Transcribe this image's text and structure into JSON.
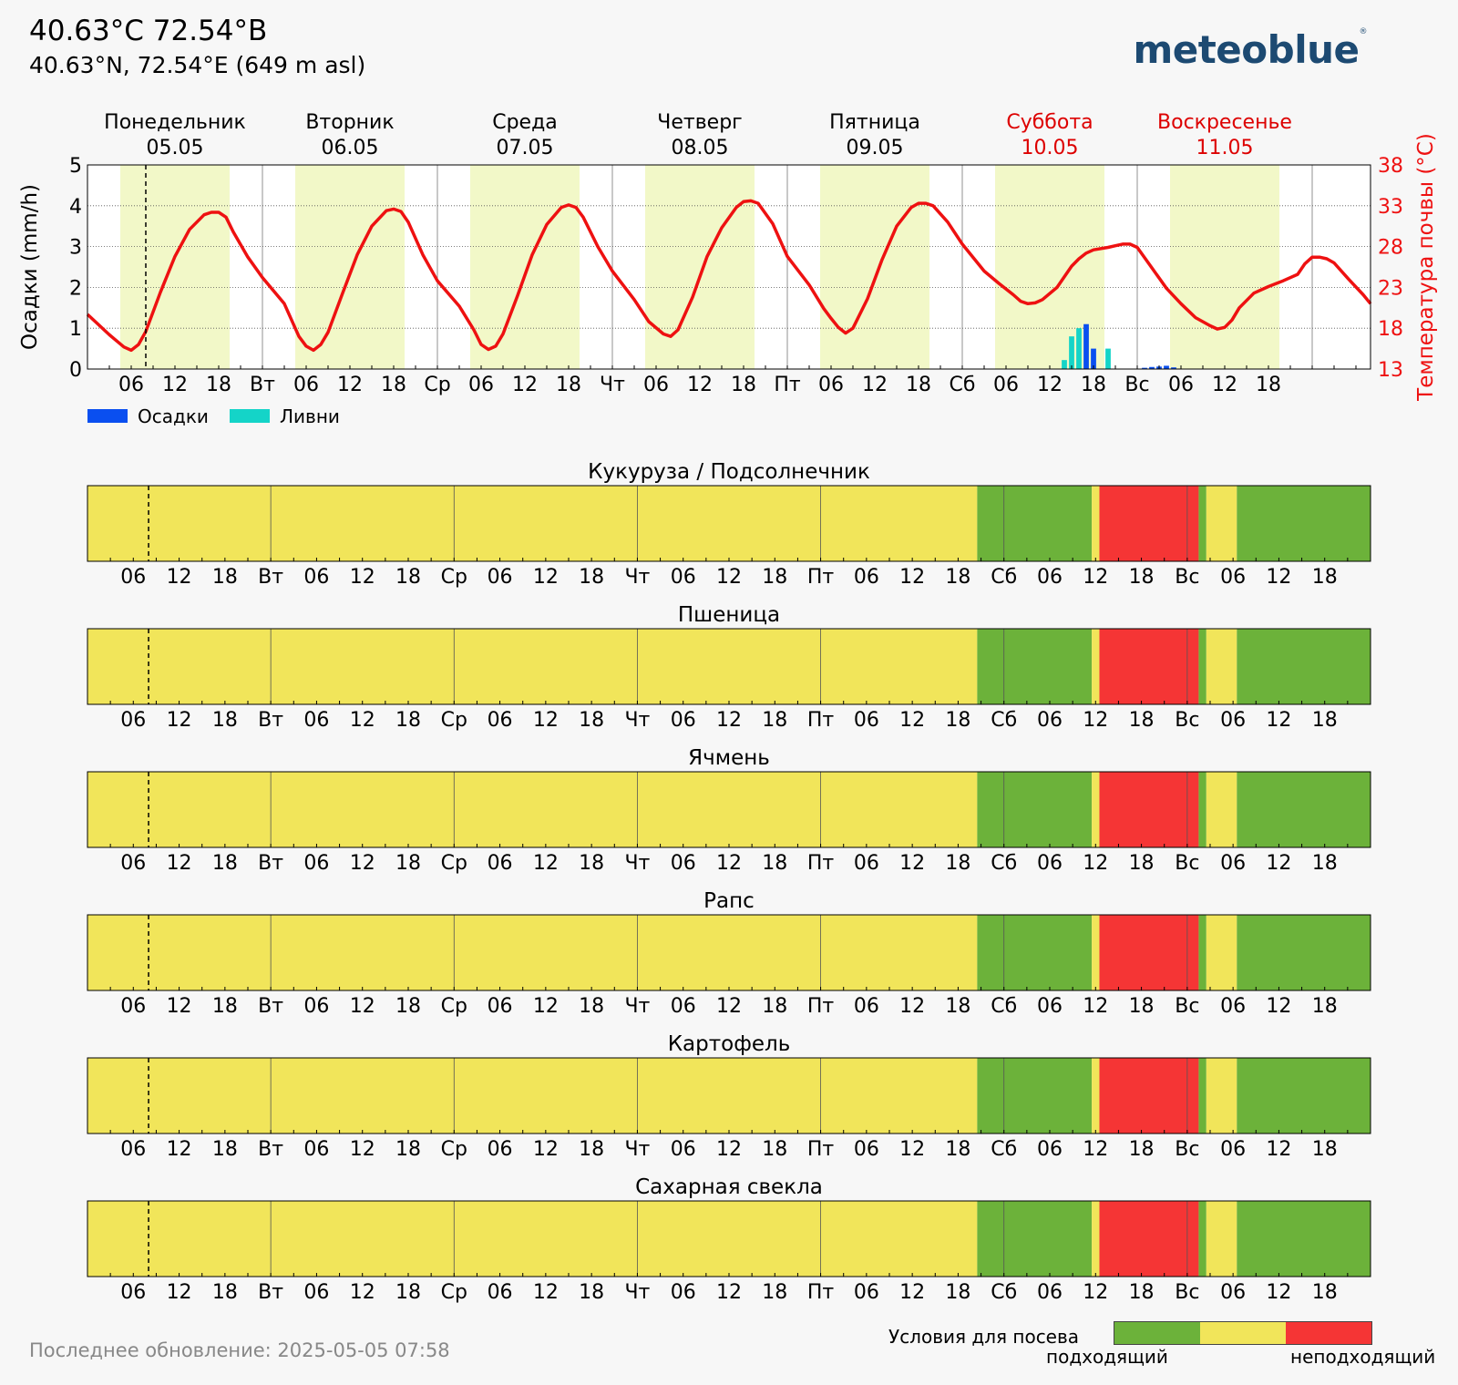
{
  "header": {
    "title": "40.63°C 72.54°В",
    "subtitle": "40.63°N, 72.54°E (649 m asl)",
    "logo": "meteoblue"
  },
  "footer": {
    "last_update": "Последнее обновление: 2025-05-05 07:58"
  },
  "legend": {
    "precip_label": "Осадки",
    "showers_label": "Ливни",
    "sowing_title": "Условия для посева",
    "suitable": "подходящий",
    "unsuitable": "неподходящий"
  },
  "colors": {
    "precip": "#0a4ff0",
    "showers": "#14d4c8",
    "temp": "#ee1111",
    "daylight": "#f2f8c8",
    "good": "#6cb23a",
    "medium": "#f1e55a",
    "bad": "#f53535",
    "weekend": "#dd0000"
  },
  "chart_data": {
    "type": "line",
    "days": [
      {
        "name": "Понедельник",
        "date": "05.05",
        "weekend": false
      },
      {
        "name": "Вторник",
        "date": "06.05",
        "weekend": false
      },
      {
        "name": "Среда",
        "date": "07.05",
        "weekend": false
      },
      {
        "name": "Четверг",
        "date": "08.05",
        "weekend": false
      },
      {
        "name": "Пятница",
        "date": "09.05",
        "weekend": false
      },
      {
        "name": "Суббота",
        "date": "10.05",
        "weekend": true
      },
      {
        "name": "Воскресенье",
        "date": "11.05",
        "weekend": true
      }
    ],
    "day_abbr": [
      "",
      "Вт",
      "Ср",
      "Чт",
      "Пт",
      "Сб",
      "Вс"
    ],
    "hour_labels": [
      "06",
      "12",
      "18"
    ],
    "ylabel_left": "Осадки (mm/h)",
    "ylabel_right": "Температура почвы (°C)",
    "ylim_left": [
      0,
      5
    ],
    "ylim_right": [
      13,
      38
    ],
    "yticks_left": [
      "0",
      "1",
      "2",
      "3",
      "4",
      "5"
    ],
    "yticks_right": [
      "13",
      "18",
      "23",
      "28",
      "33",
      "38"
    ],
    "now_hour": 8,
    "daylight_hours": [
      4.5,
      19.5
    ],
    "soil_temperature": [
      [
        0,
        19.7
      ],
      [
        3,
        17.2
      ],
      [
        5,
        15.7
      ],
      [
        6,
        15.3
      ],
      [
        7,
        16.0
      ],
      [
        8,
        17.6
      ],
      [
        10,
        22.4
      ],
      [
        12,
        26.8
      ],
      [
        14,
        30.1
      ],
      [
        16,
        31.9
      ],
      [
        17,
        32.2
      ],
      [
        18,
        32.2
      ],
      [
        19,
        31.6
      ],
      [
        20,
        29.8
      ],
      [
        22,
        26.7
      ],
      [
        24,
        24.2
      ],
      [
        27,
        21.0
      ],
      [
        29,
        17.0
      ],
      [
        30,
        15.8
      ],
      [
        31,
        15.3
      ],
      [
        32,
        16.0
      ],
      [
        33,
        17.5
      ],
      [
        35,
        22.3
      ],
      [
        37,
        27.0
      ],
      [
        39,
        30.5
      ],
      [
        41,
        32.4
      ],
      [
        42,
        32.6
      ],
      [
        43,
        32.3
      ],
      [
        44,
        31.0
      ],
      [
        46,
        27.0
      ],
      [
        48,
        23.8
      ],
      [
        51,
        20.7
      ],
      [
        53,
        17.8
      ],
      [
        54,
        16.0
      ],
      [
        55,
        15.4
      ],
      [
        56,
        15.8
      ],
      [
        57,
        17.3
      ],
      [
        59,
        22.0
      ],
      [
        61,
        27.0
      ],
      [
        63,
        30.7
      ],
      [
        65,
        32.8
      ],
      [
        66,
        33.1
      ],
      [
        67,
        32.8
      ],
      [
        68,
        31.6
      ],
      [
        70,
        28.0
      ],
      [
        72,
        25.0
      ],
      [
        75,
        21.5
      ],
      [
        77,
        18.8
      ],
      [
        79,
        17.3
      ],
      [
        80,
        17.0
      ],
      [
        81,
        17.8
      ],
      [
        83,
        21.8
      ],
      [
        85,
        26.8
      ],
      [
        87,
        30.3
      ],
      [
        89,
        32.8
      ],
      [
        90,
        33.5
      ],
      [
        91,
        33.6
      ],
      [
        92,
        33.3
      ],
      [
        94,
        30.8
      ],
      [
        96,
        26.8
      ],
      [
        99,
        23.3
      ],
      [
        101,
        20.4
      ],
      [
        102,
        19.2
      ],
      [
        103,
        18.1
      ],
      [
        104,
        17.4
      ],
      [
        105,
        18.0
      ],
      [
        107,
        21.6
      ],
      [
        109,
        26.4
      ],
      [
        111,
        30.5
      ],
      [
        113,
        32.8
      ],
      [
        114,
        33.3
      ],
      [
        115,
        33.3
      ],
      [
        116,
        33.0
      ],
      [
        118,
        31.0
      ],
      [
        120,
        28.3
      ],
      [
        123,
        25.0
      ],
      [
        125,
        23.5
      ],
      [
        127,
        22.1
      ],
      [
        128,
        21.3
      ],
      [
        129,
        21.0
      ],
      [
        130,
        21.1
      ],
      [
        131,
        21.5
      ],
      [
        133,
        23.0
      ],
      [
        135,
        25.6
      ],
      [
        136,
        26.5
      ],
      [
        137,
        27.2
      ],
      [
        138,
        27.6
      ],
      [
        140,
        27.9
      ],
      [
        141,
        28.1
      ],
      [
        142,
        28.3
      ],
      [
        143,
        28.3
      ],
      [
        144,
        27.9
      ],
      [
        146,
        25.4
      ],
      [
        148,
        22.9
      ],
      [
        150,
        21.0
      ],
      [
        152,
        19.3
      ],
      [
        154,
        18.3
      ],
      [
        155,
        17.9
      ],
      [
        156,
        18.1
      ],
      [
        157,
        19.0
      ],
      [
        158,
        20.5
      ],
      [
        160,
        22.3
      ],
      [
        162,
        23.1
      ],
      [
        164,
        23.8
      ],
      [
        166,
        24.6
      ],
      [
        167,
        25.9
      ],
      [
        168,
        26.7
      ],
      [
        169,
        26.7
      ],
      [
        170,
        26.5
      ],
      [
        171,
        26.0
      ],
      [
        173,
        24.0
      ],
      [
        175,
        22.1
      ],
      [
        176,
        21.0
      ]
    ],
    "precipitation": [
      {
        "hour": 134,
        "precip": 0,
        "showers": 0.22
      },
      {
        "hour": 135,
        "precip": 0,
        "showers": 0.8
      },
      {
        "hour": 136,
        "precip": 0,
        "showers": 1.0
      },
      {
        "hour": 137,
        "precip": 1.1,
        "showers": 0
      },
      {
        "hour": 138,
        "precip": 0.5,
        "showers": 0
      },
      {
        "hour": 140,
        "precip": 0,
        "showers": 0.5
      },
      {
        "hour": 145,
        "precip": 0.03,
        "showers": 0
      },
      {
        "hour": 146,
        "precip": 0.05,
        "showers": 0
      },
      {
        "hour": 147,
        "precip": 0.06,
        "showers": 0
      },
      {
        "hour": 148,
        "precip": 0.08,
        "showers": 0
      },
      {
        "hour": 149,
        "precip": 0.04,
        "showers": 0
      }
    ],
    "sowing_conditions_hours": 168,
    "crops": [
      {
        "name": "Кукуруза / Подсолнечник"
      },
      {
        "name": "Пшеница"
      },
      {
        "name": "Ячмень"
      },
      {
        "name": "Рапс"
      },
      {
        "name": "Картофель"
      },
      {
        "name": "Сахарная свекла"
      }
    ],
    "condition_segments": [
      {
        "from": 0,
        "to": 116.5,
        "level": "medium"
      },
      {
        "from": 116.5,
        "to": 131.5,
        "level": "good"
      },
      {
        "from": 131.5,
        "to": 132.5,
        "level": "medium"
      },
      {
        "from": 132.5,
        "to": 145.5,
        "level": "bad"
      },
      {
        "from": 145.5,
        "to": 146.5,
        "level": "good"
      },
      {
        "from": 146.5,
        "to": 150.5,
        "level": "medium"
      },
      {
        "from": 150.5,
        "to": 168,
        "level": "good"
      }
    ]
  }
}
